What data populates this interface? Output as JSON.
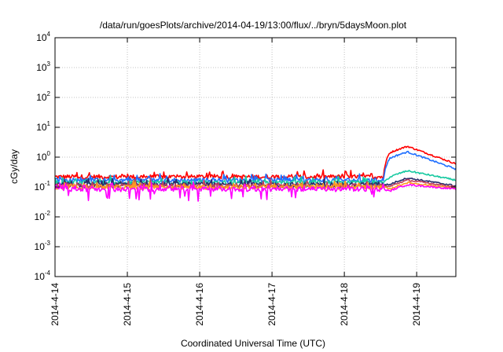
{
  "chart_data": {
    "type": "line",
    "title": "/data/run/goesPlots/archive/2014-04-19/13:00/flux/../bryn/5daysMoon.plot",
    "xlabel": "Coordinated Universal Time (UTC)",
    "ylabel": "cGy/day",
    "yscale": "log",
    "ylim": [
      0.0001,
      10000
    ],
    "xlim": [
      "2014-04-14T00:00",
      "2014-04-19T13:00"
    ],
    "y_ticks": [
      {
        "base": "10",
        "exp": "-4"
      },
      {
        "base": "10",
        "exp": "-3"
      },
      {
        "base": "10",
        "exp": "-2"
      },
      {
        "base": "10",
        "exp": "-1"
      },
      {
        "base": "10",
        "exp": "0"
      },
      {
        "base": "10",
        "exp": "1"
      },
      {
        "base": "10",
        "exp": "2"
      },
      {
        "base": "10",
        "exp": "3"
      },
      {
        "base": "10",
        "exp": "4"
      }
    ],
    "x_ticks": [
      "2014-4-14",
      "2014-4-15",
      "2014-4-16",
      "2014-4-17",
      "2014-4-18",
      "2014-4-19"
    ],
    "grid": true,
    "legend": "none",
    "event_onset": "2014-04-18T13:00",
    "series": [
      {
        "color": "#ff0000",
        "base": 0.22,
        "peak": 2.3,
        "end": 0.6
      },
      {
        "color": "#1f6fff",
        "base": 0.17,
        "peak": 1.5,
        "end": 0.4
      },
      {
        "color": "#17c9a1",
        "base": 0.14,
        "peak": 0.35,
        "end": 0.17
      },
      {
        "color": "#2b2b6b",
        "base": 0.12,
        "peak": 0.2,
        "end": 0.11
      },
      {
        "color": "#c04060",
        "base": 0.11,
        "peak": 0.17,
        "end": 0.1
      },
      {
        "color": "#ff9a1f",
        "base": 0.1,
        "peak": 0.14,
        "end": 0.09
      },
      {
        "color": "#ff00ff",
        "base": 0.085,
        "peak": 0.12,
        "end": 0.085
      }
    ]
  }
}
